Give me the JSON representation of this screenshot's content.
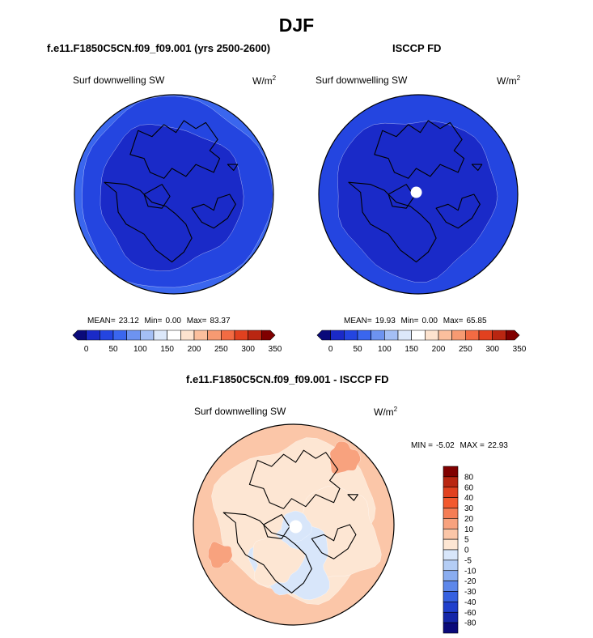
{
  "figure_title": "DJF",
  "units_base": "W/m",
  "units_exp": "2",
  "chart_data": [
    {
      "type": "polar-contour-map",
      "title": "f.e11.F1850C5CN.f09_f09.001 (yrs 2500-2600)",
      "variable": "Surf downwelling SW",
      "stats": {
        "mean_label": "MEAN=",
        "mean": "23.12",
        "min_label": "Min=",
        "min": "0.00",
        "max_label": "Max=",
        "max": "83.37"
      },
      "colorbar": {
        "orientation": "horizontal",
        "levels": [
          0,
          25,
          50,
          75,
          100,
          125,
          150,
          175,
          200,
          225,
          250,
          275,
          300,
          325,
          350
        ],
        "tick_labels": [
          "0",
          "50",
          "100",
          "150",
          "200",
          "250",
          "300",
          "350"
        ],
        "colors": [
          "#0a0a7a",
          "#1a2ac8",
          "#2445e0",
          "#3a66ee",
          "#6d93f0",
          "#a4bff5",
          "#dce8fa",
          "#ffffff",
          "#fde3cf",
          "#fbbf9d",
          "#f79a72",
          "#f26b43",
          "#e1411f",
          "#b92611",
          "#800000"
        ]
      },
      "regions": [
        {
          "range": "0-25",
          "area": "interior"
        },
        {
          "range": "25-50",
          "area": "outer ring"
        },
        {
          "range": "50-75",
          "area": "outer edge"
        }
      ]
    },
    {
      "type": "polar-contour-map",
      "title": "ISCCP FD",
      "variable": "Surf downwelling SW",
      "stats": {
        "mean_label": "MEAN=",
        "mean": "19.93",
        "min_label": "Min=",
        "min": "0.00",
        "max_label": "Max=",
        "max": "65.85"
      },
      "colorbar": {
        "orientation": "horizontal",
        "levels": [
          0,
          25,
          50,
          75,
          100,
          125,
          150,
          175,
          200,
          225,
          250,
          275,
          300,
          325,
          350
        ],
        "tick_labels": [
          "0",
          "50",
          "100",
          "150",
          "200",
          "250",
          "300",
          "350"
        ],
        "colors": [
          "#0a0a7a",
          "#1a2ac8",
          "#2445e0",
          "#3a66ee",
          "#6d93f0",
          "#a4bff5",
          "#dce8fa",
          "#ffffff",
          "#fde3cf",
          "#fbbf9d",
          "#f79a72",
          "#f26b43",
          "#e1411f",
          "#b92611",
          "#800000"
        ]
      },
      "missing": "pole",
      "regions": [
        {
          "range": "0-25",
          "area": "interior"
        },
        {
          "range": "25-50",
          "area": "outer ring"
        }
      ]
    },
    {
      "type": "polar-contour-map-difference",
      "title": "f.e11.F1850C5CN.f09_f09.001 - ISCCP FD",
      "variable": "Surf downwelling SW",
      "stats": {
        "min_label": "MIN =",
        "min": "-5.02",
        "max_label": "MAX =",
        "max": "22.93"
      },
      "colorbar": {
        "orientation": "vertical",
        "tick_labels": [
          "80",
          "60",
          "40",
          "30",
          "20",
          "10",
          "5",
          "0",
          "-5",
          "-10",
          "-20",
          "-30",
          "-40",
          "-60",
          "-80"
        ],
        "colors": [
          "#800000",
          "#b92611",
          "#e1411f",
          "#f2592e",
          "#f57d55",
          "#f8a27e",
          "#fbc6a8",
          "#fde6d3",
          "#d8e6fa",
          "#b4cdf5",
          "#8aadf0",
          "#5d87ea",
          "#3560e0",
          "#1f3fcc",
          "#1426a8",
          "#0a0a7a"
        ]
      },
      "missing": "pole",
      "regions": [
        {
          "range": "0-5",
          "area": "dominant"
        },
        {
          "range": "5-10",
          "area": "mid latitudes"
        },
        {
          "range": "10-20",
          "area": "small patches"
        },
        {
          "range": "-5-0",
          "area": "north Canada/Greenland band"
        }
      ]
    }
  ]
}
